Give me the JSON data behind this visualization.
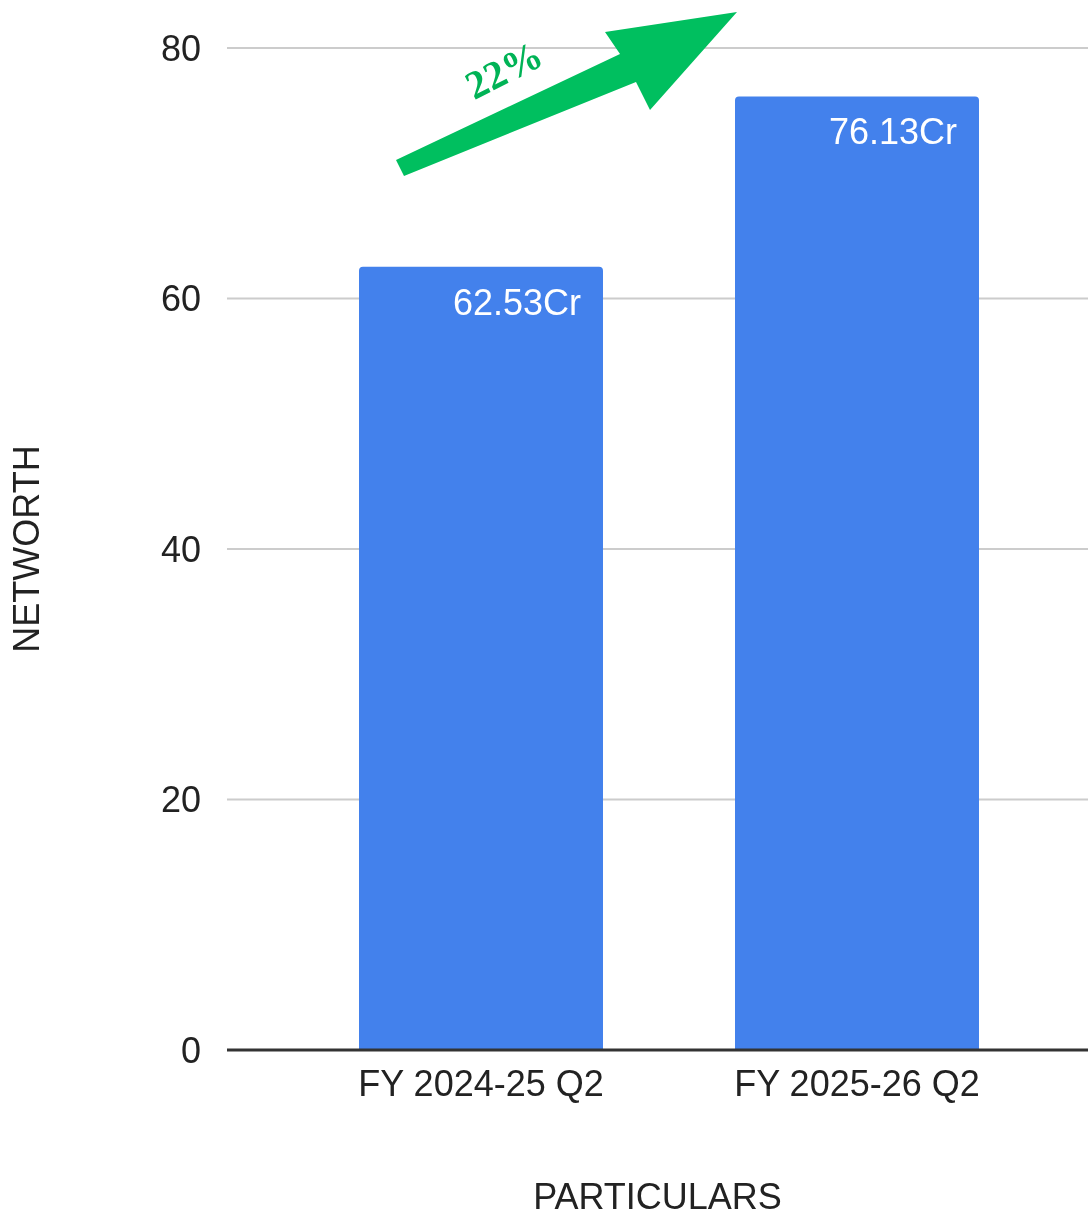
{
  "chart_data": {
    "type": "bar",
    "xlabel": "PARTICULARS",
    "ylabel": "NETWORTH",
    "categories": [
      "FY 2024-25 Q2",
      "FY 2025-26 Q2"
    ],
    "values": [
      62.53,
      76.13
    ],
    "value_labels": [
      "62.53Cr",
      "76.13Cr"
    ],
    "color": "#4381ec",
    "ylim": [
      0,
      80
    ],
    "yticks": [
      0,
      20,
      40,
      60,
      80
    ],
    "grid": "y",
    "annotations": [
      "22%"
    ]
  }
}
